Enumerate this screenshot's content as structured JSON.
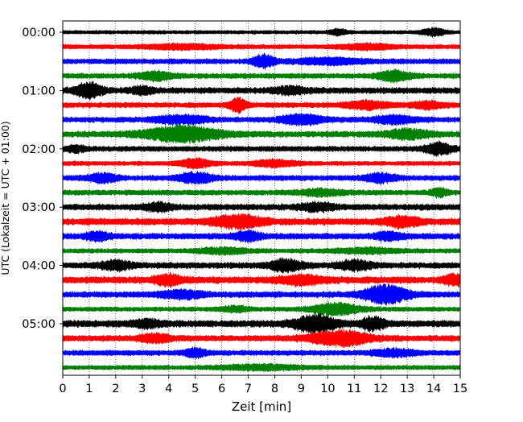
{
  "chart_data": {
    "type": "line",
    "title": "",
    "xlabel": "Zeit  [min]",
    "ylabel": "UTC (Lokalzeit = UTC + 01:00)",
    "xlim": [
      0,
      15
    ],
    "x_ticks": [
      0,
      1,
      2,
      3,
      4,
      5,
      6,
      7,
      8,
      9,
      10,
      11,
      12,
      13,
      14,
      15
    ],
    "grid": "vertical dotted at each minute",
    "trace_start_times": [
      "00:00",
      "00:15",
      "00:30",
      "00:45",
      "01:00",
      "01:15",
      "01:30",
      "01:45",
      "02:00",
      "02:15",
      "02:30",
      "02:45",
      "03:00",
      "03:15",
      "03:30",
      "03:45",
      "04:00",
      "04:15",
      "04:30",
      "04:45",
      "05:00",
      "05:15",
      "05:30",
      "05:45"
    ],
    "y_tick_labels": [
      "00:00",
      "01:00",
      "02:00",
      "03:00",
      "04:00",
      "05:00"
    ],
    "trace_colors": [
      "#000000",
      "#ff0000",
      "#0000ff",
      "#008000"
    ],
    "traces": [
      {
        "time": "00:00",
        "color": "#000000",
        "base_amplitude": 0.25,
        "bursts": [
          {
            "t": 10.4,
            "amp": 0.35,
            "width": 0.3
          },
          {
            "t": 14.0,
            "amp": 0.45,
            "width": 0.4
          }
        ]
      },
      {
        "time": "00:15",
        "color": "#ff0000",
        "base_amplitude": 0.3,
        "bursts": [
          {
            "t": 4.5,
            "amp": 0.25,
            "width": 1.5
          },
          {
            "t": 11.5,
            "amp": 0.3,
            "width": 1.0
          }
        ]
      },
      {
        "time": "00:30",
        "color": "#0000ff",
        "base_amplitude": 0.35,
        "bursts": [
          {
            "t": 7.6,
            "amp": 0.8,
            "width": 0.4
          },
          {
            "t": 10.0,
            "amp": 0.35,
            "width": 1.2
          }
        ]
      },
      {
        "time": "00:45",
        "color": "#008000",
        "base_amplitude": 0.35,
        "bursts": [
          {
            "t": 3.5,
            "amp": 0.5,
            "width": 0.6
          },
          {
            "t": 12.5,
            "amp": 0.6,
            "width": 0.6
          }
        ]
      },
      {
        "time": "01:00",
        "color": "#000000",
        "base_amplitude": 0.4,
        "bursts": [
          {
            "t": 1.0,
            "amp": 0.9,
            "width": 0.5
          },
          {
            "t": 3.0,
            "amp": 0.45,
            "width": 0.4
          },
          {
            "t": 8.6,
            "amp": 0.4,
            "width": 0.6
          }
        ]
      },
      {
        "time": "01:15",
        "color": "#ff0000",
        "base_amplitude": 0.35,
        "bursts": [
          {
            "t": 6.6,
            "amp": 0.9,
            "width": 0.3
          },
          {
            "t": 11.5,
            "amp": 0.45,
            "width": 0.8
          },
          {
            "t": 13.8,
            "amp": 0.4,
            "width": 0.6
          }
        ]
      },
      {
        "time": "01:30",
        "color": "#0000ff",
        "base_amplitude": 0.35,
        "bursts": [
          {
            "t": 4.5,
            "amp": 0.5,
            "width": 1.0
          },
          {
            "t": 9.0,
            "amp": 0.6,
            "width": 0.8
          },
          {
            "t": 12.5,
            "amp": 0.45,
            "width": 0.8
          }
        ]
      },
      {
        "time": "01:45",
        "color": "#008000",
        "base_amplitude": 0.4,
        "bursts": [
          {
            "t": 4.5,
            "amp": 0.95,
            "width": 1.4
          },
          {
            "t": 13.0,
            "amp": 0.55,
            "width": 0.8
          }
        ]
      },
      {
        "time": "02:00",
        "color": "#000000",
        "base_amplitude": 0.35,
        "bursts": [
          {
            "t": 0.5,
            "amp": 0.35,
            "width": 0.4
          },
          {
            "t": 14.2,
            "amp": 0.75,
            "width": 0.5
          }
        ]
      },
      {
        "time": "02:15",
        "color": "#ff0000",
        "base_amplitude": 0.3,
        "bursts": [
          {
            "t": 5.0,
            "amp": 0.55,
            "width": 0.6
          },
          {
            "t": 8.0,
            "amp": 0.4,
            "width": 0.8
          }
        ]
      },
      {
        "time": "02:30",
        "color": "#0000ff",
        "base_amplitude": 0.35,
        "bursts": [
          {
            "t": 1.5,
            "amp": 0.5,
            "width": 0.6
          },
          {
            "t": 5.0,
            "amp": 0.6,
            "width": 0.7
          },
          {
            "t": 12.0,
            "amp": 0.5,
            "width": 0.6
          }
        ]
      },
      {
        "time": "02:45",
        "color": "#008000",
        "base_amplitude": 0.35,
        "bursts": [
          {
            "t": 9.8,
            "amp": 0.35,
            "width": 0.8
          },
          {
            "t": 14.2,
            "amp": 0.5,
            "width": 0.3
          }
        ]
      },
      {
        "time": "03:00",
        "color": "#000000",
        "base_amplitude": 0.4,
        "bursts": [
          {
            "t": 3.6,
            "amp": 0.45,
            "width": 0.5
          },
          {
            "t": 9.6,
            "amp": 0.45,
            "width": 0.6
          }
        ]
      },
      {
        "time": "03:15",
        "color": "#ff0000",
        "base_amplitude": 0.45,
        "bursts": [
          {
            "t": 6.6,
            "amp": 0.75,
            "width": 0.9
          },
          {
            "t": 12.8,
            "amp": 0.6,
            "width": 0.6
          }
        ]
      },
      {
        "time": "03:30",
        "color": "#0000ff",
        "base_amplitude": 0.4,
        "bursts": [
          {
            "t": 1.3,
            "amp": 0.45,
            "width": 0.5
          },
          {
            "t": 7.0,
            "amp": 0.5,
            "width": 0.5
          },
          {
            "t": 12.3,
            "amp": 0.45,
            "width": 0.5
          }
        ]
      },
      {
        "time": "03:45",
        "color": "#008000",
        "base_amplitude": 0.3,
        "bursts": [
          {
            "t": 6.0,
            "amp": 0.35,
            "width": 1.0
          },
          {
            "t": 11.5,
            "amp": 0.3,
            "width": 1.2
          }
        ]
      },
      {
        "time": "04:00",
        "color": "#000000",
        "base_amplitude": 0.4,
        "bursts": [
          {
            "t": 2.0,
            "amp": 0.5,
            "width": 0.6
          },
          {
            "t": 8.4,
            "amp": 0.7,
            "width": 0.6
          },
          {
            "t": 11.0,
            "amp": 0.55,
            "width": 0.6
          }
        ]
      },
      {
        "time": "04:15",
        "color": "#ff0000",
        "base_amplitude": 0.45,
        "bursts": [
          {
            "t": 4.0,
            "amp": 0.6,
            "width": 0.5
          },
          {
            "t": 9.0,
            "amp": 0.5,
            "width": 0.8
          },
          {
            "t": 14.8,
            "amp": 0.6,
            "width": 0.4
          }
        ]
      },
      {
        "time": "04:30",
        "color": "#0000ff",
        "base_amplitude": 0.4,
        "bursts": [
          {
            "t": 12.2,
            "amp": 1.15,
            "width": 0.8
          },
          {
            "t": 4.5,
            "amp": 0.4,
            "width": 0.8
          }
        ]
      },
      {
        "time": "04:45",
        "color": "#008000",
        "base_amplitude": 0.3,
        "bursts": [
          {
            "t": 10.3,
            "amp": 0.75,
            "width": 0.9
          },
          {
            "t": 6.5,
            "amp": 0.35,
            "width": 0.5
          }
        ]
      },
      {
        "time": "05:00",
        "color": "#000000",
        "base_amplitude": 0.45,
        "bursts": [
          {
            "t": 9.5,
            "amp": 0.95,
            "width": 0.8
          },
          {
            "t": 11.7,
            "amp": 0.8,
            "width": 0.4
          },
          {
            "t": 3.2,
            "amp": 0.4,
            "width": 0.5
          }
        ]
      },
      {
        "time": "05:15",
        "color": "#ff0000",
        "base_amplitude": 0.4,
        "bursts": [
          {
            "t": 10.5,
            "amp": 0.9,
            "width": 1.1
          },
          {
            "t": 3.5,
            "amp": 0.45,
            "width": 0.6
          }
        ]
      },
      {
        "time": "05:30",
        "color": "#0000ff",
        "base_amplitude": 0.35,
        "bursts": [
          {
            "t": 5.0,
            "amp": 0.5,
            "width": 0.4
          },
          {
            "t": 12.5,
            "amp": 0.4,
            "width": 0.8
          }
        ]
      },
      {
        "time": "05:45",
        "color": "#008000",
        "base_amplitude": 0.3,
        "bursts": [
          {
            "t": 7.5,
            "amp": 0.3,
            "width": 1.5
          }
        ]
      }
    ]
  }
}
